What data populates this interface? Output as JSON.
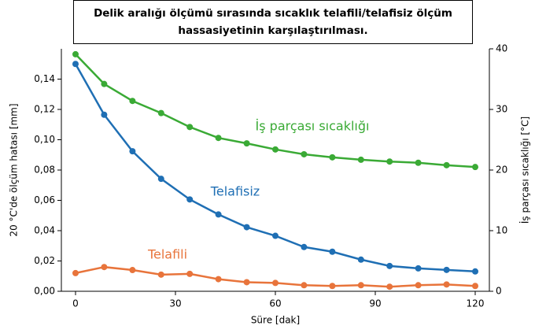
{
  "chart_data": {
    "type": "line",
    "title": "Delik aralığı ölçümü sırasında sıcaklık telafili/telafisiz ölçüm hassasiyetinin karşılaştırılması.",
    "xlabel": "Süre [dak]",
    "ylabel": "20 °C'de ölçüm hatası [mm]",
    "y2label": "İş parçası sıcaklığı [°C]",
    "x": [
      0,
      8.6,
      17.1,
      25.7,
      34.3,
      42.9,
      51.4,
      60,
      68.6,
      77.1,
      85.7,
      94.3,
      102.9,
      111.4,
      120
    ],
    "series": [
      {
        "name": "İş parçası sıcaklığı",
        "color": "#3aaa35",
        "axis": "y2",
        "values": [
          39.1,
          34.2,
          31.4,
          29.4,
          27.1,
          25.3,
          24.4,
          23.4,
          22.6,
          22.1,
          21.7,
          21.4,
          21.2,
          20.8,
          20.5
        ]
      },
      {
        "name": "Telafisiz",
        "color": "#1f6fb4",
        "axis": "y",
        "values": [
          0.15,
          0.1165,
          0.0924,
          0.0742,
          0.0606,
          0.0507,
          0.0423,
          0.0366,
          0.0292,
          0.0261,
          0.0209,
          0.0167,
          0.0151,
          0.0141,
          0.0131
        ]
      },
      {
        "name": "Telafili",
        "color": "#e8743b",
        "axis": "y",
        "values": [
          0.012,
          0.016,
          0.014,
          0.011,
          0.0115,
          0.008,
          0.006,
          0.0055,
          0.004,
          0.0035,
          0.004,
          0.003,
          0.004,
          0.0045,
          0.0035
        ]
      }
    ],
    "xlim": [
      -4.25,
      124.25
    ],
    "xticks": [
      0,
      30,
      60,
      90,
      120
    ],
    "ylim": [
      0,
      0.16
    ],
    "yticks": [
      {
        "value": 0,
        "label": "0,00"
      },
      {
        "value": 0.02,
        "label": "0,02"
      },
      {
        "value": 0.04,
        "label": "0,04"
      },
      {
        "value": 0.06,
        "label": "0,06"
      },
      {
        "value": 0.08,
        "label": "0,08"
      },
      {
        "value": 0.1,
        "label": "0,10"
      },
      {
        "value": 0.12,
        "label": "0,12"
      },
      {
        "value": 0.14,
        "label": "0,14"
      }
    ],
    "y2lim": [
      0,
      40
    ],
    "y2ticks": [
      0,
      10,
      20,
      30,
      40
    ],
    "grid": false
  }
}
